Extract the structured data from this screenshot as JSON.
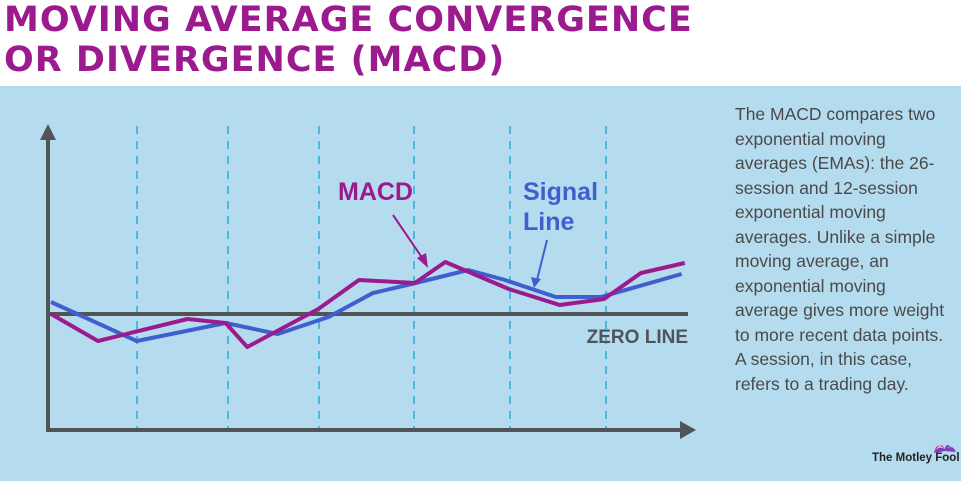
{
  "title_lines": [
    "MOVING AVERAGE CONVERGENCE",
    "OR DIVERGENCE (MACD)"
  ],
  "description": "The MACD compares two exponential moving averages (EMAs): the 26-session and 12-session exponential moving averages. Unlike a simple moving average, an exponential moving average gives more weight to more recent data points. A session, in this case, refers to a trading day.",
  "brand": "The Motley Fool",
  "colors": {
    "macd": "#9b1b8e",
    "signal": "#3f5fcf",
    "axis": "#505458",
    "grid": "#4bb8dc",
    "background": "#b5dcee"
  },
  "chart_data": {
    "type": "line",
    "title": "",
    "xlabel": "",
    "ylabel": "",
    "grid": "vertical dashed",
    "reference_line": {
      "label": "ZERO LINE",
      "value": 0
    },
    "series": [
      {
        "name": "MACD",
        "label_lines": [
          "MACD"
        ],
        "x": [
          0,
          7.4,
          21.5,
          27.5,
          30.9,
          42.1,
          48.5,
          57.3,
          62.1,
          72.1,
          80.1,
          87.1,
          92.9,
          99.8
        ],
        "y": [
          0,
          -2.7,
          -0.5,
          -0.9,
          -3.3,
          0.5,
          3.4,
          3.1,
          5.2,
          2.5,
          0.9,
          1.5,
          4.1,
          5.1
        ]
      },
      {
        "name": "Signal Line",
        "label_lines": [
          "Signal",
          "Line"
        ],
        "x": [
          0,
          13.5,
          27.5,
          35.7,
          43.7,
          50.7,
          56.8,
          65.7,
          71.5,
          79.5,
          86.6,
          99.3
        ],
        "y": [
          1.2,
          -2.7,
          -0.9,
          -2.0,
          -0.3,
          2.1,
          3.0,
          4.4,
          3.4,
          1.7,
          1.7,
          4.0
        ]
      }
    ]
  }
}
